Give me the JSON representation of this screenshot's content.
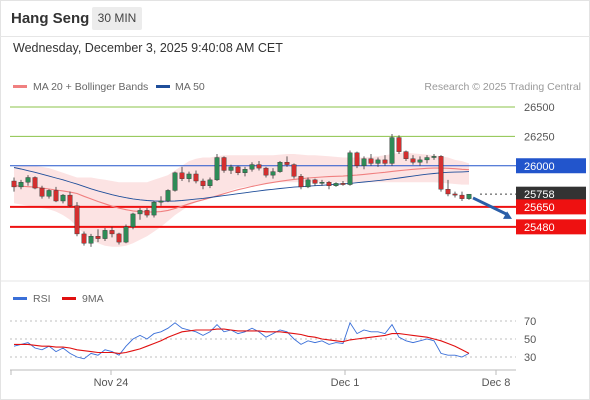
{
  "header": {
    "title": "Hang Seng",
    "timeframe": "30 MIN",
    "datetime": "Wednesday, December 3, 2025 9:40:08 AM CET"
  },
  "legend": {
    "ma20": "MA 20 + Bollinger Bands",
    "ma50": "MA 50",
    "credit": "Research © 2025 Trading Central",
    "rsi": "RSI",
    "ma9": "9MA"
  },
  "colors": {
    "ma20": "#f08080",
    "ma50": "#1f4e9a",
    "band": "#fbd9d9",
    "green_level": "#8bc34a",
    "red_level": "#ee1111",
    "blue_level": "#2255cc",
    "current": "#333333",
    "arrow": "#2a5ea8",
    "rsi": "#3a6fd8",
    "rsi_ma": "#e01010"
  },
  "chart_data": [
    {
      "type": "candlestick",
      "title": "Hang Seng 30 MIN",
      "ylim": [
        25280,
        26560
      ],
      "x_ticks": [
        "Nov 24",
        "Dec 1",
        "Dec 8"
      ],
      "y_ticks": [
        26500,
        26250
      ],
      "levels": [
        {
          "label": "26500",
          "value": 26500,
          "kind": "green"
        },
        {
          "label": "26250",
          "value": 26250,
          "kind": "green"
        },
        {
          "label": "26000",
          "value": 26000,
          "kind": "blue"
        },
        {
          "label": "25758",
          "value": 25758,
          "kind": "current"
        },
        {
          "label": "25650",
          "value": 25650,
          "kind": "red"
        },
        {
          "label": "25480",
          "value": 25480,
          "kind": "red"
        }
      ],
      "forecast_arrow": {
        "from": 25760,
        "to": 25480
      },
      "series": [
        {
          "name": "Hang Seng",
          "ohlc": [
            [
              25870,
              25900,
              25780,
              25820
            ],
            [
              25820,
              25880,
              25800,
              25860
            ],
            [
              25860,
              25920,
              25830,
              25900
            ],
            [
              25900,
              25910,
              25800,
              25810
            ],
            [
              25810,
              25830,
              25720,
              25740
            ],
            [
              25740,
              25800,
              25720,
              25790
            ],
            [
              25790,
              25820,
              25690,
              25700
            ],
            [
              25700,
              25760,
              25680,
              25750
            ],
            [
              25750,
              25780,
              25650,
              25660
            ],
            [
              25660,
              25690,
              25400,
              25420
            ],
            [
              25420,
              25440,
              25320,
              25340
            ],
            [
              25340,
              25420,
              25310,
              25400
            ],
            [
              25400,
              25460,
              25350,
              25380
            ],
            [
              25380,
              25470,
              25360,
              25450
            ],
            [
              25450,
              25480,
              25390,
              25420
            ],
            [
              25420,
              25430,
              25330,
              25350
            ],
            [
              25350,
              25500,
              25340,
              25480
            ],
            [
              25480,
              25600,
              25460,
              25590
            ],
            [
              25590,
              25640,
              25540,
              25620
            ],
            [
              25620,
              25640,
              25560,
              25580
            ],
            [
              25580,
              25700,
              25560,
              25690
            ],
            [
              25690,
              25740,
              25660,
              25700
            ],
            [
              25700,
              25800,
              25690,
              25790
            ],
            [
              25790,
              25950,
              25780,
              25940
            ],
            [
              25940,
              25990,
              25870,
              25890
            ],
            [
              25890,
              25950,
              25860,
              25930
            ],
            [
              25930,
              25960,
              25850,
              25870
            ],
            [
              25870,
              25890,
              25800,
              25830
            ],
            [
              25830,
              25900,
              25810,
              25880
            ],
            [
              25880,
              26100,
              25870,
              26070
            ],
            [
              26070,
              26080,
              25940,
              25960
            ],
            [
              25960,
              26010,
              25930,
              25990
            ],
            [
              25990,
              26000,
              25920,
              25940
            ],
            [
              25940,
              25990,
              25910,
              25970
            ],
            [
              25970,
              26030,
              25950,
              26010
            ],
            [
              26010,
              26040,
              25960,
              25980
            ],
            [
              25980,
              25990,
              25900,
              25920
            ],
            [
              25920,
              25980,
              25890,
              25950
            ],
            [
              25950,
              26040,
              25940,
              26030
            ],
            [
              26030,
              26080,
              25990,
              26010
            ],
            [
              26010,
              26020,
              25890,
              25910
            ],
            [
              25910,
              25930,
              25800,
              25820
            ],
            [
              25820,
              25900,
              25810,
              25880
            ],
            [
              25880,
              25890,
              25830,
              25850
            ],
            [
              25850,
              25880,
              25830,
              25860
            ],
            [
              25860,
              25870,
              25800,
              25830
            ],
            [
              25830,
              25860,
              25820,
              25850
            ],
            [
              25850,
              25870,
              25830,
              25840
            ],
            [
              25840,
              26130,
              25830,
              26110
            ],
            [
              26110,
              26120,
              25980,
              26000
            ],
            [
              26000,
              26080,
              25970,
              26060
            ],
            [
              26060,
              26100,
              26000,
              26020
            ],
            [
              26020,
              26070,
              25990,
              26050
            ],
            [
              26050,
              26090,
              26000,
              26020
            ],
            [
              26020,
              26270,
              26000,
              26240
            ],
            [
              26240,
              26260,
              26100,
              26120
            ],
            [
              26120,
              26130,
              26040,
              26060
            ],
            [
              26060,
              26090,
              26010,
              26030
            ],
            [
              26030,
              26080,
              26000,
              26050
            ],
            [
              26050,
              26090,
              26020,
              26070
            ],
            [
              26070,
              26100,
              26050,
              26080
            ],
            [
              26080,
              26090,
              25780,
              25800
            ],
            [
              25800,
              25880,
              25740,
              25760
            ],
            [
              25760,
              25780,
              25730,
              25750
            ],
            [
              25750,
              25780,
              25700,
              25720
            ],
            [
              25720,
              25760,
              25710,
              25758
            ]
          ]
        },
        {
          "name": "MA 20",
          "values": [
            25830,
            25826,
            25822,
            25818,
            25810,
            25802,
            25794,
            25786,
            25776,
            25764,
            25740,
            25718,
            25696,
            25676,
            25656,
            25640,
            25626,
            25616,
            25610,
            25606,
            25606,
            25610,
            25620,
            25636,
            25656,
            25676,
            25694,
            25710,
            25726,
            25744,
            25762,
            25780,
            25796,
            25810,
            25824,
            25836,
            25848,
            25858,
            25868,
            25876,
            25884,
            25890,
            25896,
            25900,
            25904,
            25908,
            25910,
            25912,
            25916,
            25920,
            25926,
            25932,
            25938,
            25944,
            25952,
            25958,
            25964,
            25970,
            25974,
            25978,
            25980,
            25980,
            25978,
            25975,
            25970,
            25966
          ]
        },
        {
          "name": "MA 50",
          "values": [
            25985,
            25972,
            25958,
            25944,
            25928,
            25912,
            25896,
            25880,
            25862,
            25844,
            25824,
            25804,
            25786,
            25770,
            25754,
            25740,
            25728,
            25718,
            25710,
            25704,
            25700,
            25698,
            25698,
            25700,
            25704,
            25710,
            25716,
            25722,
            25730,
            25738,
            25746,
            25754,
            25762,
            25770,
            25778,
            25786,
            25794,
            25800,
            25806,
            25812,
            25818,
            25822,
            25826,
            25830,
            25834,
            25838,
            25842,
            25846,
            25850,
            25856,
            25862,
            25868,
            25874,
            25880,
            25888,
            25896,
            25904,
            25912,
            25920,
            25928,
            25934,
            25940,
            25944,
            25946,
            25948,
            25950
          ]
        },
        {
          "name": "Bollinger Upper",
          "values": [
            25990,
            25995,
            26000,
            26000,
            25990,
            25980,
            25960,
            25940,
            25920,
            25900,
            25900,
            25900,
            25890,
            25880,
            25870,
            25860,
            25860,
            25860,
            25860,
            25860,
            25880,
            25900,
            25920,
            25960,
            26000,
            26040,
            26060,
            26070,
            26070,
            26080,
            26090,
            26090,
            26090,
            26090,
            26090,
            26090,
            26090,
            26090,
            26095,
            26100,
            26100,
            26095,
            26090,
            26090,
            26085,
            26080,
            26075,
            26070,
            26070,
            26070,
            26070,
            26075,
            26080,
            26090,
            26100,
            26110,
            26110,
            26105,
            26100,
            26095,
            26090,
            26080,
            26070,
            26050,
            26040,
            26020
          ]
        },
        {
          "name": "Bollinger Lower",
          "values": [
            25680,
            25670,
            25660,
            25650,
            25640,
            25630,
            25610,
            25580,
            25540,
            25480,
            25420,
            25370,
            25340,
            25320,
            25310,
            25310,
            25320,
            25340,
            25370,
            25400,
            25440,
            25480,
            25530,
            25580,
            25620,
            25660,
            25690,
            25710,
            25730,
            25750,
            25770,
            25790,
            25810,
            25820,
            25830,
            25840,
            25850,
            25860,
            25860,
            25860,
            25860,
            25860,
            25860,
            25860,
            25860,
            25860,
            25860,
            25860,
            25860,
            25860,
            25860,
            25860,
            25860,
            25860,
            25860,
            25860,
            25860,
            25860,
            25860,
            25860,
            25860,
            25855,
            25850,
            25845,
            25840,
            25840
          ]
        }
      ]
    },
    {
      "type": "line",
      "title": "RSI",
      "ylim": [
        20,
        75
      ],
      "y_ticks": [
        70,
        50,
        30
      ],
      "x_ticks": [
        "Nov 24",
        "Dec 1",
        "Dec 8"
      ],
      "series": [
        {
          "name": "RSI",
          "values": [
            42,
            44,
            46,
            40,
            38,
            42,
            36,
            40,
            34,
            30,
            28,
            34,
            32,
            38,
            36,
            32,
            42,
            50,
            54,
            50,
            56,
            58,
            62,
            68,
            62,
            60,
            58,
            54,
            58,
            66,
            58,
            60,
            56,
            58,
            62,
            58,
            52,
            56,
            60,
            58,
            50,
            44,
            48,
            46,
            48,
            44,
            46,
            45,
            68,
            56,
            60,
            58,
            58,
            56,
            66,
            52,
            48,
            46,
            48,
            50,
            48,
            34,
            32,
            32,
            30,
            34
          ]
        },
        {
          "name": "9MA",
          "values": [
            44,
            44,
            44,
            43,
            42,
            42,
            41,
            41,
            40,
            38,
            37,
            36,
            35,
            35,
            35,
            34,
            35,
            37,
            39,
            42,
            45,
            48,
            52,
            55,
            58,
            59,
            60,
            60,
            60,
            61,
            61,
            60,
            59,
            59,
            59,
            59,
            58,
            58,
            58,
            57,
            56,
            55,
            53,
            52,
            50,
            49,
            48,
            47,
            49,
            50,
            51,
            52,
            53,
            54,
            56,
            56,
            55,
            54,
            53,
            52,
            50,
            48,
            45,
            42,
            38,
            34
          ]
        }
      ]
    }
  ]
}
